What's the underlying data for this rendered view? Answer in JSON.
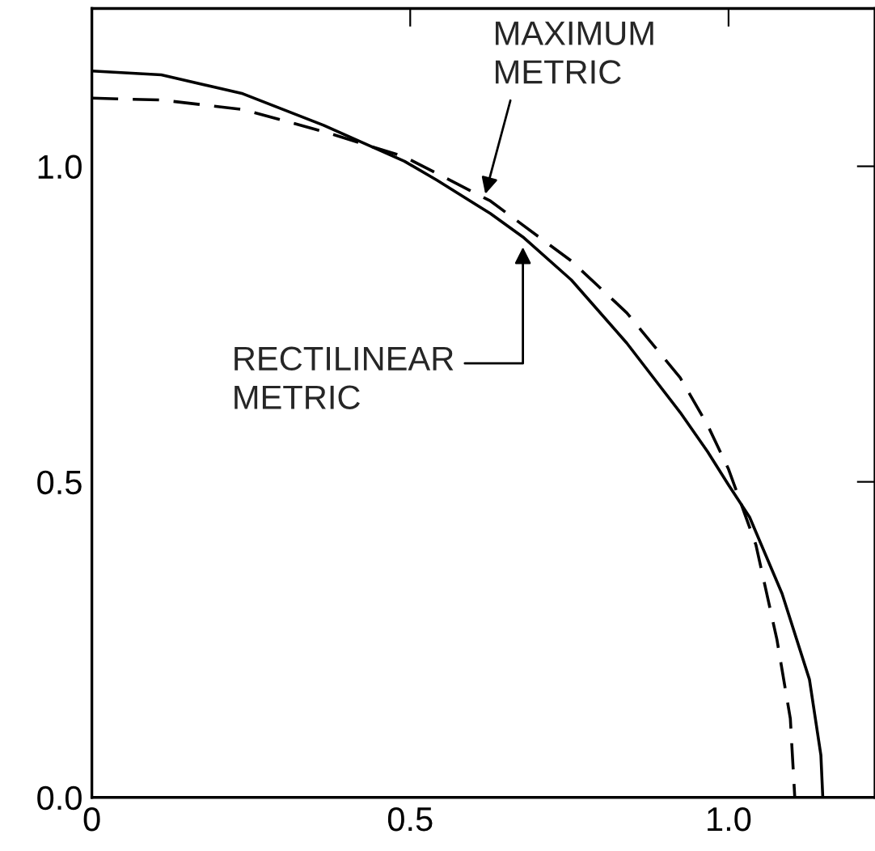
{
  "chart_data": {
    "type": "line",
    "series": [
      {
        "color": "#000000",
        "line_style": "solid",
        "x": [
          0,
          0.109,
          0.237,
          0.364,
          0.491,
          0.542,
          0.626,
          0.677,
          0.753,
          0.84,
          0.924,
          0.967,
          1.0,
          1.033,
          1.084,
          1.127,
          1.145,
          1.148
        ],
        "values": [
          1.151,
          1.145,
          1.115,
          1.065,
          1.008,
          0.978,
          0.925,
          0.888,
          0.82,
          0.72,
          0.61,
          0.548,
          0.495,
          0.444,
          0.323,
          0.187,
          0.067,
          0
        ]
      },
      {
        "color": "#000000",
        "line_style": "dashed",
        "x": [
          0,
          0.109,
          0.237,
          0.364,
          0.491,
          0.626,
          0.753,
          0.84,
          0.924,
          0.967,
          1.0,
          1.043,
          1.076,
          1.097,
          1.104
        ],
        "values": [
          1.108,
          1.105,
          1.09,
          1.055,
          1.015,
          0.945,
          0.85,
          0.768,
          0.665,
          0.59,
          0.52,
          0.4,
          0.25,
          0.125,
          0
        ]
      }
    ],
    "annotations": [
      {
        "text": "MAXIMUM\nMETRIC",
        "x": 0.618,
        "y": 0.956
      },
      {
        "text": "RECTILINEAR\nMETRIC",
        "x": 0.677,
        "y": 0.872
      }
    ],
    "xlim": [
      0,
      1.23
    ],
    "ylim": [
      0,
      1.25
    ],
    "xticks": [
      {
        "value": 0,
        "label": "0"
      },
      0.5,
      {
        "value": 1,
        "label": "1.0"
      }
    ],
    "yticks": [
      {
        "value": 0,
        "label": "0.0"
      },
      0.5,
      {
        "value": 1,
        "label": "1.0"
      }
    ],
    "grid": false,
    "legend": false,
    "marker": "none"
  }
}
